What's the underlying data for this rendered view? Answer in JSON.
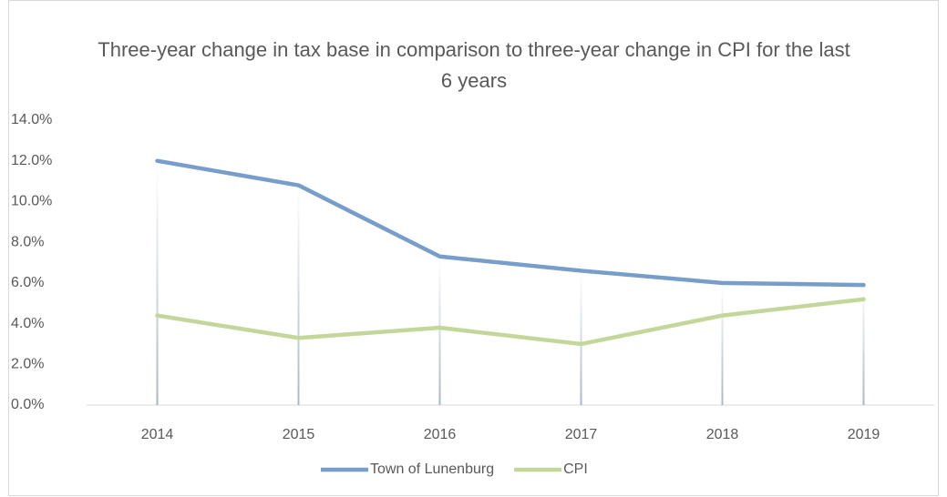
{
  "chart_data": {
    "type": "line",
    "title": "Three-year change in tax base in comparison to three-year change in CPI for the last 6 years",
    "categories": [
      "2014",
      "2015",
      "2016",
      "2017",
      "2018",
      "2019"
    ],
    "series": [
      {
        "name": "Town of Lunenburg",
        "color": "#779ecb",
        "values": [
          12.0,
          10.8,
          7.3,
          6.6,
          6.0,
          5.9
        ]
      },
      {
        "name": "CPI",
        "color": "#c4d79b",
        "values": [
          4.4,
          3.3,
          3.8,
          3.0,
          4.4,
          5.2
        ]
      }
    ],
    "ylim": [
      0,
      14
    ],
    "yticks": [
      {
        "value": 0,
        "label": "0.0%"
      },
      {
        "value": 2,
        "label": "2.0%"
      },
      {
        "value": 4,
        "label": "4.0%"
      },
      {
        "value": 6,
        "label": "6.0%"
      },
      {
        "value": 8,
        "label": "8.0%"
      },
      {
        "value": 10,
        "label": "10.0%"
      },
      {
        "value": 12,
        "label": "12.0%"
      },
      {
        "value": 14,
        "label": "14.0%"
      }
    ],
    "drop_lines": true,
    "legend": "bottom"
  }
}
